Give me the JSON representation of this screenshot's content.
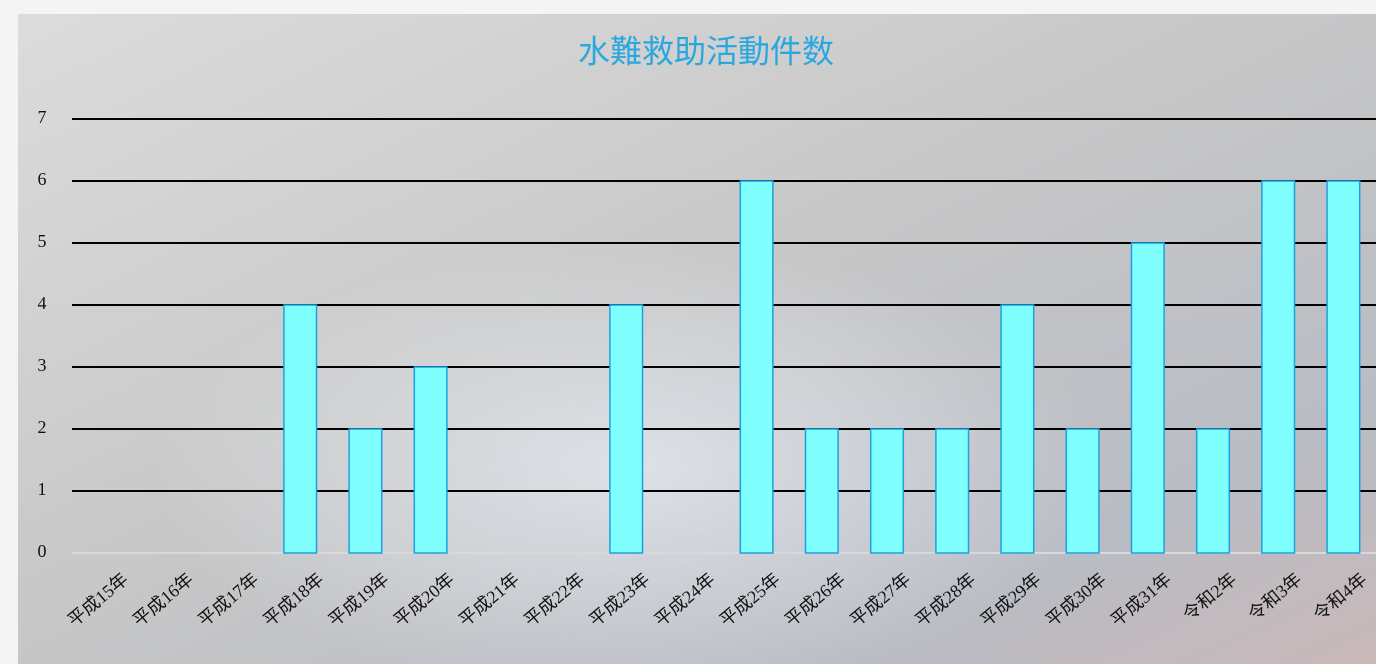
{
  "chart_data": {
    "type": "bar",
    "title": "水難救助活動件数",
    "categories": [
      "平成15年",
      "平成16年",
      "平成17年",
      "平成18年",
      "平成19年",
      "平成20年",
      "平成21年",
      "平成22年",
      "平成23年",
      "平成24年",
      "平成25年",
      "平成26年",
      "平成27年",
      "平成28年",
      "平成29年",
      "平成30年",
      "平成31年",
      "令和2年",
      "令和3年",
      "令和4年"
    ],
    "values": [
      0,
      0,
      0,
      4,
      2,
      3,
      0,
      0,
      4,
      0,
      6,
      2,
      2,
      2,
      4,
      2,
      5,
      2,
      6,
      6
    ],
    "color": "#80ffff",
    "ylim": [
      0,
      7
    ],
    "yticks": [
      0,
      1,
      2,
      3,
      4,
      5,
      6,
      7
    ],
    "grid": true
  }
}
